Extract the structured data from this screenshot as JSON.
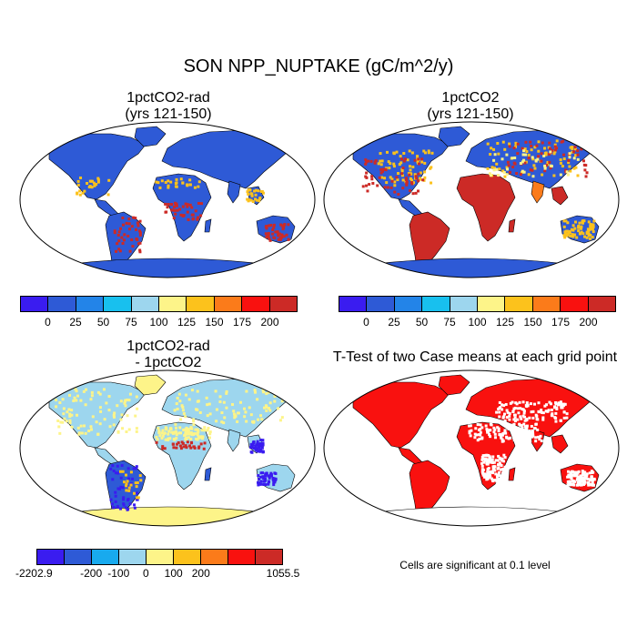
{
  "title": "SON NPP_NUPTAKE (gC/m^2/y)",
  "panels": [
    {
      "id": "p1",
      "title_line1": "1pctCO2-rad",
      "title_line2": "(yrs 121-150)"
    },
    {
      "id": "p2",
      "title_line1": "1pctCO2",
      "title_line2": "(yrs 121-150)"
    },
    {
      "id": "p3",
      "title_line1": "1pctCO2-rad",
      "title_line2": "- 1pctCO2"
    },
    {
      "id": "p4",
      "title_line1": "T-Test of two Case means at each grid point",
      "title_line2": ""
    }
  ],
  "colorbar_top": {
    "colors": [
      "#3a1cf0",
      "#2e5ad6",
      "#2384e8",
      "#18c0ee",
      "#9dd6ee",
      "#fdf489",
      "#fcc21c",
      "#fb7b1a",
      "#f9110f",
      "#cc2a26"
    ],
    "labels": [
      "0",
      "25",
      "50",
      "75",
      "100",
      "125",
      "150",
      "175",
      "200"
    ]
  },
  "colorbar_diff": {
    "colors": [
      "#3a1cf0",
      "#2e5ad6",
      "#18aaee",
      "#9dd6ee",
      "#fdf489",
      "#fcc21c",
      "#fb7b1a",
      "#f9110f",
      "#cc2a26"
    ],
    "labels": [
      "-2202.9",
      "-200",
      "-100",
      "0",
      "100",
      "200",
      "1055.5"
    ]
  },
  "significance_note": "Cells are significant at 0.1 level",
  "map_colors": {
    "p1_base": "#2e5ad6",
    "p2_base": "#2e5ad6",
    "p2_tropics": "#cc2a26",
    "p3_base": "#9dd6ee",
    "p3_yellow": "#fdf489",
    "p4_sig": "#f9110f"
  },
  "chart_data": [
    {
      "type": "heatmap",
      "panel": "1pctCO2-rad",
      "projection": "Robinson",
      "units": "gC/m^2/y",
      "levels": [
        0,
        25,
        50,
        75,
        100,
        125,
        150,
        175,
        200
      ]
    },
    {
      "type": "heatmap",
      "panel": "1pctCO2",
      "projection": "Robinson",
      "units": "gC/m^2/y",
      "levels": [
        0,
        25,
        50,
        75,
        100,
        125,
        150,
        175,
        200
      ]
    },
    {
      "type": "heatmap",
      "panel": "1pctCO2-rad - 1pctCO2",
      "projection": "Robinson",
      "units": "gC/m^2/y",
      "levels": [
        -2202.9,
        -200,
        -100,
        0,
        100,
        200,
        1055.5
      ]
    },
    {
      "type": "heatmap",
      "panel": "T-Test of two Case means at each grid point",
      "projection": "Robinson",
      "significance_level": 0.1
    }
  ]
}
